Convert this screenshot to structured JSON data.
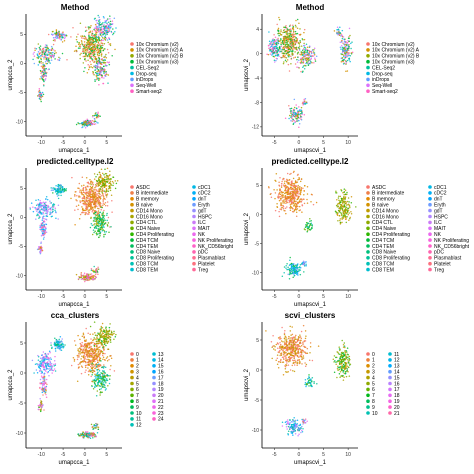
{
  "chart_data": [
    {
      "type": "scatter",
      "title": "Method",
      "xlabel": "umapcca_1",
      "ylabel": "umapcca_2",
      "xticks": [
        -10,
        -5,
        0,
        5
      ],
      "yticks": [
        -10,
        -5,
        0,
        5
      ],
      "xlim": [
        -13.5,
        8.5
      ],
      "ylim": [
        -12.5,
        8.5
      ],
      "legend_position": "right",
      "legend": [
        {
          "label": "10x Chromium (v2)",
          "color": "#F8766D"
        },
        {
          "label": "10x Chromium (v2) A",
          "color": "#D39200"
        },
        {
          "label": "10x Chromium (v2) B",
          "color": "#93AA00"
        },
        {
          "label": "10x Chromium (v3)",
          "color": "#00BA38"
        },
        {
          "label": "CEL-Seq2",
          "color": "#00C19F"
        },
        {
          "label": "Drop-seq",
          "color": "#00B9E3"
        },
        {
          "label": "inDrops",
          "color": "#619CFF"
        },
        {
          "label": "Seq-Well",
          "color": "#DB72FB"
        },
        {
          "label": "Smart-seq2",
          "color": "#FF61C3"
        }
      ]
    },
    {
      "type": "scatter",
      "title": "Method",
      "xlabel": "umapscvi_1",
      "ylabel": "umapscvi_2",
      "xticks": [
        -5,
        0,
        5,
        10
      ],
      "yticks": [
        -12,
        -8,
        -4,
        0,
        4
      ],
      "xlim": [
        -7.5,
        12
      ],
      "ylim": [
        -13.5,
        6.5
      ],
      "legend_position": "right",
      "legend": [
        {
          "label": "10x Chromium (v2)",
          "color": "#F8766D"
        },
        {
          "label": "10x Chromium (v2) A",
          "color": "#D39200"
        },
        {
          "label": "10x Chromium (v2) B",
          "color": "#93AA00"
        },
        {
          "label": "10x Chromium (v3)",
          "color": "#00BA38"
        },
        {
          "label": "CEL-Seq2",
          "color": "#00C19F"
        },
        {
          "label": "Drop-seq",
          "color": "#00B9E3"
        },
        {
          "label": "inDrops",
          "color": "#619CFF"
        },
        {
          "label": "Seq-Well",
          "color": "#DB72FB"
        },
        {
          "label": "Smart-seq2",
          "color": "#FF61C3"
        }
      ]
    },
    {
      "type": "scatter",
      "title": "predicted.celltype.l2",
      "xlabel": "umapcca_1",
      "ylabel": "umapcca_2",
      "xticks": [
        -10,
        -5,
        0,
        5
      ],
      "yticks": [
        -10,
        -5,
        0,
        5
      ],
      "xlim": [
        -13.5,
        8.5
      ],
      "ylim": [
        -12.5,
        8.5
      ],
      "legend_position": "right",
      "legend": [
        {
          "label": "ASDC",
          "color": "#F8766D"
        },
        {
          "label": "B intermediate",
          "color": "#EF7F49"
        },
        {
          "label": "B memory",
          "color": "#E38900"
        },
        {
          "label": "B naive",
          "color": "#D39200"
        },
        {
          "label": "CD14 Mono",
          "color": "#C09B00"
        },
        {
          "label": "CD16 Mono",
          "color": "#A9A400"
        },
        {
          "label": "CD4 CTL",
          "color": "#8FAA00"
        },
        {
          "label": "CD4 Naive",
          "color": "#6BB100"
        },
        {
          "label": "CD4 Proliferating",
          "color": "#2EB600"
        },
        {
          "label": "CD4 TCM",
          "color": "#00BA38"
        },
        {
          "label": "CD4 TEM",
          "color": "#00BD5C"
        },
        {
          "label": "CD8 Naive",
          "color": "#00BF7C"
        },
        {
          "label": "CD8 Proliferating",
          "color": "#00C19A"
        },
        {
          "label": "CD8 TCM",
          "color": "#00C0B5"
        },
        {
          "label": "CD8 TEM",
          "color": "#00BDD0"
        },
        {
          "label": "cDC1",
          "color": "#00B8E5"
        },
        {
          "label": "cDC2",
          "color": "#00B0F6"
        },
        {
          "label": "dnT",
          "color": "#00A5FF"
        },
        {
          "label": "Eryth",
          "color": "#6E9CFF"
        },
        {
          "label": "gdT",
          "color": "#9590FF"
        },
        {
          "label": "HSPC",
          "color": "#B385FF"
        },
        {
          "label": "ILC",
          "color": "#CB7BF7"
        },
        {
          "label": "MAIT",
          "color": "#DC71FA"
        },
        {
          "label": "NK",
          "color": "#EC69EF"
        },
        {
          "label": "NK Proliferating",
          "color": "#F862DF"
        },
        {
          "label": "NK_CD56bright",
          "color": "#FF61C9"
        },
        {
          "label": "pDC",
          "color": "#FF64B0"
        },
        {
          "label": "Plasmablast",
          "color": "#FF6C91"
        },
        {
          "label": "Platelet",
          "color": "#FC717F"
        },
        {
          "label": "Treg",
          "color": "#FF6A98"
        }
      ]
    },
    {
      "type": "scatter",
      "title": "predicted.celltype.l2",
      "xlabel": "umapscvi_1",
      "ylabel": "umapscvi_2",
      "xticks": [
        -5,
        0,
        5,
        10
      ],
      "yticks": [
        -10,
        -5,
        0,
        5
      ],
      "xlim": [
        -7.5,
        12
      ],
      "ylim": [
        -13,
        8
      ],
      "legend_position": "right",
      "legend": [
        {
          "label": "ASDC",
          "color": "#F8766D"
        },
        {
          "label": "B intermediate",
          "color": "#EF7F49"
        },
        {
          "label": "B memory",
          "color": "#E38900"
        },
        {
          "label": "B naive",
          "color": "#D39200"
        },
        {
          "label": "CD14 Mono",
          "color": "#C09B00"
        },
        {
          "label": "CD16 Mono",
          "color": "#A9A400"
        },
        {
          "label": "CD4 CTL",
          "color": "#8FAA00"
        },
        {
          "label": "CD4 Naive",
          "color": "#6BB100"
        },
        {
          "label": "CD4 Proliferating",
          "color": "#2EB600"
        },
        {
          "label": "CD4 TCM",
          "color": "#00BA38"
        },
        {
          "label": "CD4 TEM",
          "color": "#00BD5C"
        },
        {
          "label": "CD8 Naive",
          "color": "#00BF7C"
        },
        {
          "label": "CD8 Proliferating",
          "color": "#00C19A"
        },
        {
          "label": "CD8 TCM",
          "color": "#00C0B5"
        },
        {
          "label": "CD8 TEM",
          "color": "#00BDD0"
        },
        {
          "label": "cDC1",
          "color": "#00B8E5"
        },
        {
          "label": "cDC2",
          "color": "#00B0F6"
        },
        {
          "label": "dnT",
          "color": "#00A5FF"
        },
        {
          "label": "Eryth",
          "color": "#6E9CFF"
        },
        {
          "label": "gdT",
          "color": "#9590FF"
        },
        {
          "label": "HSPC",
          "color": "#B385FF"
        },
        {
          "label": "ILC",
          "color": "#CB7BF7"
        },
        {
          "label": "MAIT",
          "color": "#DC71FA"
        },
        {
          "label": "NK",
          "color": "#EC69EF"
        },
        {
          "label": "NK Proliferating",
          "color": "#F862DF"
        },
        {
          "label": "NK_CD56bright",
          "color": "#FF61C9"
        },
        {
          "label": "pDC",
          "color": "#FF64B0"
        },
        {
          "label": "Plasmablast",
          "color": "#FF6C91"
        },
        {
          "label": "Platelet",
          "color": "#FC717F"
        },
        {
          "label": "Treg",
          "color": "#FF6A98"
        }
      ]
    },
    {
      "type": "scatter",
      "title": "cca_clusters",
      "xlabel": "umapcca_1",
      "ylabel": "umapcca_2",
      "xticks": [
        -10,
        -5,
        0,
        5
      ],
      "yticks": [
        -10,
        -5,
        0,
        5
      ],
      "xlim": [
        -13.5,
        8.5
      ],
      "ylim": [
        -12.5,
        8.5
      ],
      "legend_position": "right",
      "legend": [
        {
          "label": "0",
          "color": "#F8766D"
        },
        {
          "label": "1",
          "color": "#EE8044"
        },
        {
          "label": "2",
          "color": "#E18A00"
        },
        {
          "label": "3",
          "color": "#D09400"
        },
        {
          "label": "4",
          "color": "#BB9D00"
        },
        {
          "label": "5",
          "color": "#A3A500"
        },
        {
          "label": "6",
          "color": "#85AD00"
        },
        {
          "label": "7",
          "color": "#5BB300"
        },
        {
          "label": "8",
          "color": "#00B81F"
        },
        {
          "label": "9",
          "color": "#00BC59"
        },
        {
          "label": "10",
          "color": "#00BF7D"
        },
        {
          "label": "11",
          "color": "#00C19C"
        },
        {
          "label": "12",
          "color": "#00C0B8"
        },
        {
          "label": "13",
          "color": "#00BDD1"
        },
        {
          "label": "14",
          "color": "#00B8E6"
        },
        {
          "label": "15",
          "color": "#00B0F6"
        },
        {
          "label": "16",
          "color": "#00A5FF"
        },
        {
          "label": "17",
          "color": "#6B9EFF"
        },
        {
          "label": "18",
          "color": "#9590FF"
        },
        {
          "label": "19",
          "color": "#B385FF"
        },
        {
          "label": "20",
          "color": "#CB7BF7"
        },
        {
          "label": "21",
          "color": "#DF70F8"
        },
        {
          "label": "22",
          "color": "#EE67EB"
        },
        {
          "label": "23",
          "color": "#F962DA"
        },
        {
          "label": "24",
          "color": "#FF61C3"
        }
      ]
    },
    {
      "type": "scatter",
      "title": "scvi_clusters",
      "xlabel": "umapscvi_1",
      "ylabel": "umapscvi_2",
      "xticks": [
        -5,
        0,
        5,
        10
      ],
      "yticks": [
        -10,
        -5,
        0,
        5
      ],
      "xlim": [
        -7.5,
        12
      ],
      "ylim": [
        -13,
        8
      ],
      "legend_position": "right",
      "legend": [
        {
          "label": "0",
          "color": "#F8766D"
        },
        {
          "label": "1",
          "color": "#EC8239"
        },
        {
          "label": "2",
          "color": "#DB8E00"
        },
        {
          "label": "3",
          "color": "#C59900"
        },
        {
          "label": "4",
          "color": "#AEA200"
        },
        {
          "label": "5",
          "color": "#8FAA00"
        },
        {
          "label": "6",
          "color": "#64B200"
        },
        {
          "label": "7",
          "color": "#00B81B"
        },
        {
          "label": "8",
          "color": "#00BD5C"
        },
        {
          "label": "9",
          "color": "#00C08D"
        },
        {
          "label": "10",
          "color": "#00C1B2"
        },
        {
          "label": "11",
          "color": "#00BDD0"
        },
        {
          "label": "12",
          "color": "#00B6EB"
        },
        {
          "label": "13",
          "color": "#00ABFD"
        },
        {
          "label": "14",
          "color": "#619CFF"
        },
        {
          "label": "15",
          "color": "#9590FF"
        },
        {
          "label": "16",
          "color": "#B983FF"
        },
        {
          "label": "17",
          "color": "#D575FE"
        },
        {
          "label": "18",
          "color": "#E76BF3"
        },
        {
          "label": "19",
          "color": "#F564E3"
        },
        {
          "label": "20",
          "color": "#FF62CB"
        },
        {
          "label": "21",
          "color": "#FF66A8"
        }
      ]
    }
  ]
}
